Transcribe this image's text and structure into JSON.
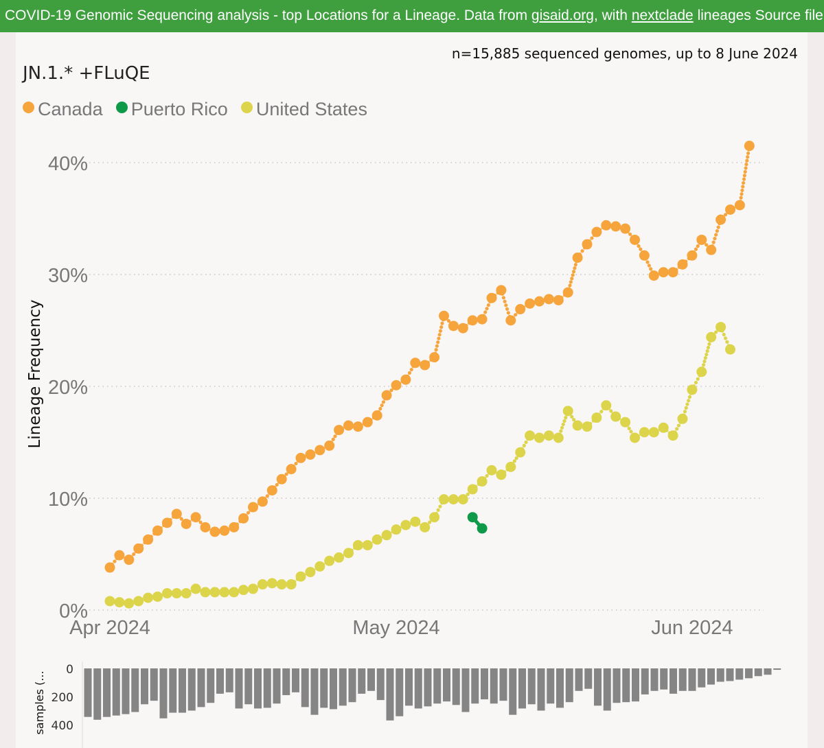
{
  "banner": {
    "prefix": "COVID-19 Genomic Sequencing analysis - top Locations for a Lineage. Data from ",
    "link1": "gisaid.org",
    "middle": ", with ",
    "link2": "nextclade",
    "suffix": " lineages Source file"
  },
  "note": "n=15,885 sequenced genomes, up to 8 June 2024",
  "colors": {
    "Canada": "#f6a53d",
    "Puerto Rico": "#0f9a4a",
    "United States": "#dcd44a",
    "bars": "#858585"
  },
  "chart_data": [
    {
      "type": "line",
      "title": "JN.1.* +FLuQE",
      "ylabel": "Lineage Frequency",
      "ylim": [
        0,
        43
      ],
      "yticks": [
        0,
        10,
        20,
        30,
        40
      ],
      "ytick_labels": [
        "0%",
        "10%",
        "20%",
        "30%",
        "40%"
      ],
      "xlim_days": [
        0,
        69
      ],
      "xticks": [
        {
          "day": 0,
          "label": "Apr 2024"
        },
        {
          "day": 30,
          "label": "May 2024"
        },
        {
          "day": 61,
          "label": "Jun 2024"
        }
      ],
      "legend": [
        "Canada",
        "Puerto Rico",
        "United States"
      ],
      "series": [
        {
          "name": "Canada",
          "start_day": 0,
          "values": [
            3.8,
            4.9,
            4.5,
            5.5,
            6.3,
            7.1,
            7.8,
            8.6,
            7.7,
            8.3,
            7.4,
            7.0,
            7.1,
            7.4,
            8.2,
            9.2,
            9.7,
            10.7,
            11.7,
            12.6,
            13.6,
            13.9,
            14.3,
            14.7,
            16.1,
            16.5,
            16.4,
            16.8,
            17.4,
            19.2,
            20.1,
            20.6,
            22.1,
            21.9,
            22.6,
            26.3,
            25.4,
            25.2,
            25.9,
            26.0,
            27.9,
            28.6,
            25.9,
            26.9,
            27.4,
            27.6,
            27.8,
            27.7,
            28.4,
            31.5,
            32.7,
            33.8,
            34.4,
            34.3,
            34.1,
            33.1,
            31.7,
            29.9,
            30.2,
            30.2,
            30.9,
            31.7,
            33.1,
            32.2,
            34.9,
            35.8,
            36.2,
            41.5
          ]
        },
        {
          "name": "Puerto Rico",
          "start_day": 38,
          "values": [
            8.3,
            7.3
          ]
        },
        {
          "name": "United States",
          "start_day": 0,
          "values": [
            0.8,
            0.7,
            0.6,
            0.8,
            1.1,
            1.2,
            1.5,
            1.5,
            1.5,
            1.9,
            1.6,
            1.6,
            1.6,
            1.6,
            1.8,
            1.9,
            2.3,
            2.4,
            2.3,
            2.3,
            3.0,
            3.4,
            3.9,
            4.4,
            4.7,
            5.1,
            5.8,
            5.8,
            6.3,
            6.7,
            7.2,
            7.6,
            7.9,
            7.4,
            8.3,
            9.9,
            9.9,
            9.9,
            10.8,
            11.5,
            12.5,
            12.1,
            12.8,
            14.1,
            15.6,
            15.4,
            15.6,
            15.4,
            17.8,
            16.5,
            16.4,
            17.2,
            18.3,
            17.3,
            16.8,
            15.4,
            15.9,
            15.9,
            16.3,
            15.6,
            17.1,
            19.7,
            21.3,
            24.4,
            25.3,
            23.3
          ]
        }
      ]
    },
    {
      "type": "bar",
      "ylabel": "samples (...",
      "yticks": [
        0,
        200,
        400
      ],
      "ylim": [
        0,
        420
      ],
      "start_day": 0,
      "values": [
        345,
        365,
        345,
        335,
        325,
        310,
        255,
        230,
        355,
        315,
        315,
        300,
        275,
        245,
        180,
        170,
        285,
        255,
        285,
        280,
        250,
        190,
        170,
        275,
        330,
        280,
        290,
        265,
        240,
        180,
        160,
        225,
        370,
        340,
        265,
        285,
        270,
        250,
        235,
        260,
        310,
        250,
        220,
        250,
        230,
        330,
        285,
        255,
        300,
        250,
        280,
        240,
        160,
        145,
        265,
        300,
        245,
        240,
        235,
        185,
        160,
        150,
        180,
        160,
        160,
        135,
        115,
        95,
        90,
        80,
        70,
        55,
        45,
        10
      ]
    }
  ]
}
